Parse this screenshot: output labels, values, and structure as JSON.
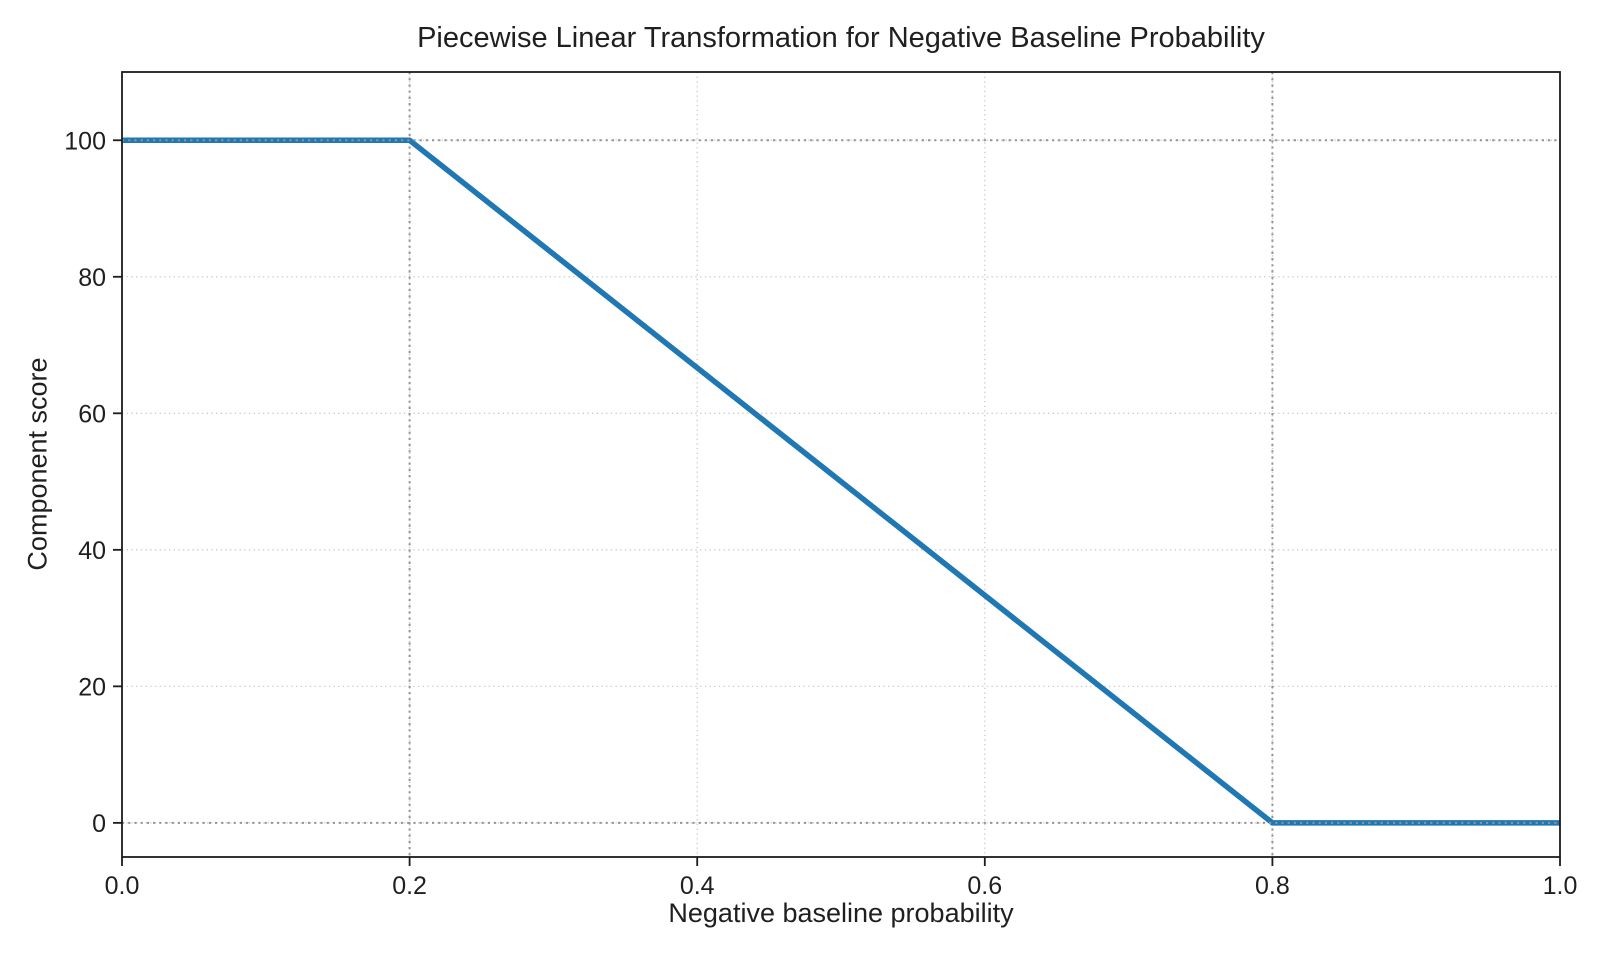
{
  "chart_data": {
    "type": "line",
    "title": "Piecewise Linear Transformation for Negative Baseline Probability",
    "xlabel": "Negative baseline probability",
    "ylabel": "Component score",
    "series": [
      {
        "name": "component-score-curve",
        "color": "#1f77b4",
        "line_width": 5.5,
        "points": [
          {
            "x": 0.0,
            "y": 100
          },
          {
            "x": 0.2,
            "y": 100
          },
          {
            "x": 0.8,
            "y": 0
          },
          {
            "x": 1.0,
            "y": 0
          }
        ]
      }
    ],
    "xlim": [
      0.0,
      1.0
    ],
    "ylim": [
      -5,
      110
    ],
    "x_ticks": [
      0.0,
      0.2,
      0.4,
      0.6,
      0.8,
      1.0
    ],
    "x_tick_labels": [
      "0.0",
      "0.2",
      "0.4",
      "0.6",
      "0.8",
      "1.0"
    ],
    "y_ticks": [
      0,
      20,
      40,
      60,
      80,
      100
    ],
    "y_tick_labels": [
      "0",
      "20",
      "40",
      "60",
      "80",
      "100"
    ],
    "grid": {
      "visible": true,
      "style": "dotted",
      "color": "#c9c9c9"
    },
    "reference_lines": {
      "style": "dotted",
      "color": "#949494",
      "vertical_x": [
        0.2,
        0.8
      ],
      "horizontal_y": [
        0,
        100
      ]
    },
    "axis": {
      "spine_color": "#1c1c1c",
      "text_color": "#1f1f1f",
      "legend": "none"
    }
  }
}
